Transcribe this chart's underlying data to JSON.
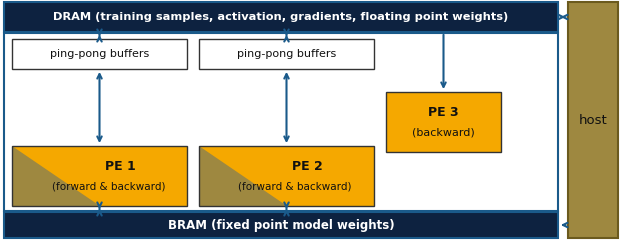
{
  "fig_width": 6.22,
  "fig_height": 2.4,
  "dpi": 100,
  "colors": {
    "dram_bg": "#0d2240",
    "bram_bg": "#0d2240",
    "host_bg": "#9e8840",
    "pe_yellow": "#f5a800",
    "pe_tan": "#9e8840",
    "ppbuf_bg": "#ffffff",
    "inner_box_bg": "#ffffff",
    "inner_box_border": "#1a5a8a",
    "arrow": "#1a5a8a",
    "text_white": "#ffffff",
    "text_dark": "#111111"
  },
  "dram_label": "DRAM (training samples, activation, gradients, floating point weights)",
  "bram_label": "BRAM (fixed point model weights)",
  "host_label": "host",
  "pe1_line1": "PE 1",
  "pe1_line2": "(forward & backward)",
  "pe2_line1": "PE 2",
  "pe2_line2": "(forward & backward)",
  "pe3_line1": "PE 3",
  "pe3_line2": "(backward)",
  "ppbuf_label": "ping-pong buffers"
}
